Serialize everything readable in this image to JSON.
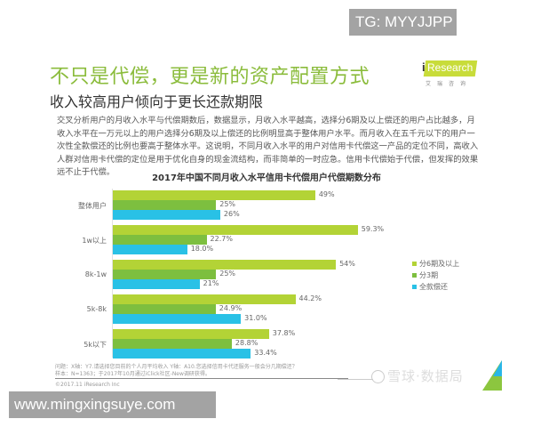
{
  "watermarks": {
    "top": "TG: MYYJJPP",
    "bottom": "www.mingxingsuye.com"
  },
  "header": {
    "title": "不只是代偿，更是新的资产配置方式",
    "subtitle": "收入较高用户倾向于更长还款期限",
    "logo": {
      "i": "i",
      "text": "Research",
      "sub": "艾瑞咨询"
    }
  },
  "paragraph": "交叉分析用户的月收入水平与代偿期数后，数据显示，月收入水平越高，选择分6期及以上偿还的用户占比越多，月收入水平在一万元以上的用户选择分6期及以上偿还的比例明显高于整体用户水平。而月收入在五千元以下的用户一次性全款偿还的比例也要高于整体水平。这说明，不同月收入水平的用户对信用卡代偿这一产品的定位不同，高收入人群对信用卡代偿的定位是用于优化自身的现金流结构，而非简单的一时应急。信用卡代偿始于代偿，但发挥的效果远不止于代偿。",
  "colors": {
    "series1": "#b3d336",
    "series2": "#7dbf3f",
    "series3": "#29c1e6",
    "accent": "#8bbc3c"
  },
  "chart_data": {
    "type": "bar",
    "orientation": "horizontal",
    "title": "2017年中国不同月收入水平信用卡代偿用户代偿期数分布",
    "categories": [
      "整体用户",
      "1w以上",
      "8k-1w",
      "5k-8k",
      "5k以下"
    ],
    "series": [
      {
        "name": "分6期及以上",
        "values": [
          49,
          59.3,
          54,
          44.2,
          37.8
        ],
        "labels": [
          "49%",
          "59.3%",
          "54%",
          "44.2%",
          "37.8%"
        ]
      },
      {
        "name": "分3期",
        "values": [
          25,
          22.7,
          25,
          24.9,
          28.8
        ],
        "labels": [
          "25%",
          "22.7%",
          "25%",
          "24.9%",
          "28.8%"
        ]
      },
      {
        "name": "全款偿还",
        "values": [
          26,
          18.0,
          21,
          31.0,
          33.4
        ],
        "labels": [
          "26%",
          "18.0%",
          "21%",
          "31.0%",
          "33.4%"
        ]
      }
    ],
    "xlabel": "",
    "ylabel": "",
    "legend_position": "right",
    "grid": false
  },
  "notes": {
    "question": "问题：X轴：Y7.请选择您目前的个人月平均收入  Y轴：A10.您选择信用卡代还服务一般会分几期偿还？",
    "sample": "样本：N=1363；于2017年10月通过iClick社区-New调研获得。",
    "copyright": "©2017.11 iResearch Inc"
  },
  "footer_brand": "雪球·数据局"
}
